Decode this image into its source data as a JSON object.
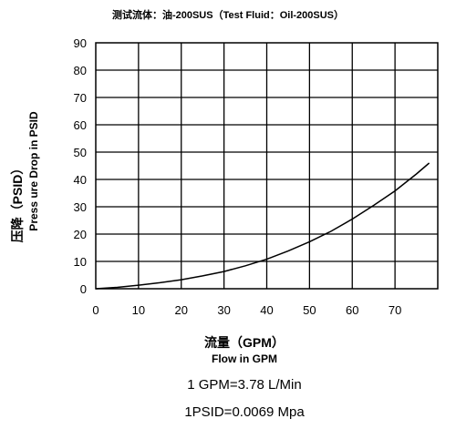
{
  "chart_data": {
    "type": "line",
    "title": "测试流体：油-200SUS（Test Fluid：Oil-200SUS）",
    "xlabel_cn": "流量（GPM）",
    "xlabel_en": "Flow in GPM",
    "ylabel_cn": "压降（PSID）",
    "ylabel_en": "Press ure Drop in PSID",
    "xlim": [
      0,
      80
    ],
    "ylim": [
      0,
      90
    ],
    "x_ticks": [
      "0",
      "10",
      "20",
      "30",
      "40",
      "50",
      "60",
      "70"
    ],
    "y_ticks": [
      "0",
      "10",
      "20",
      "30",
      "40",
      "50",
      "60",
      "70",
      "80",
      "90"
    ],
    "grid": true,
    "series": [
      {
        "x": [
          0,
          5,
          10,
          15,
          20,
          25,
          30,
          35,
          40,
          45,
          50,
          55,
          60,
          65,
          70,
          75,
          78
        ],
        "y": [
          0,
          0.5,
          1.3,
          2.2,
          3.3,
          4.7,
          6.3,
          8.4,
          10.8,
          13.8,
          17.2,
          21.0,
          25.5,
          30.5,
          35.8,
          42.0,
          46.0
        ]
      }
    ],
    "notes": [
      "1 GPM=3.78 L/Min",
      "1PSID=0.0069 Mpa"
    ]
  }
}
